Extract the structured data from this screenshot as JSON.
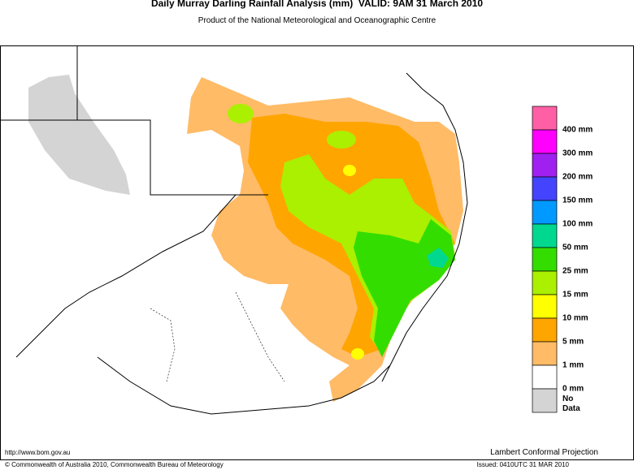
{
  "header": {
    "title": "Daily Murray Darling Rainfall Analysis (mm)  VALID: 9AM 31 March 2010",
    "subtitle": "Product of the National Meteorological and Oceanographic Centre"
  },
  "legend": {
    "colors": [
      "#ff5fa5",
      "#ff00ff",
      "#a020f0",
      "#4444ff",
      "#0099ff",
      "#00d890",
      "#33dd00",
      "#aaf000",
      "#ffff00",
      "#ffa500",
      "#ffbb66",
      "#ffffff",
      "#d4d4d4"
    ],
    "labels": [
      "400 mm",
      "300 mm",
      "200 mm",
      "150 mm",
      "100 mm",
      "50 mm",
      "25 mm",
      "15 mm",
      "10 mm",
      "5 mm",
      "1 mm",
      "0 mm",
      "No Data"
    ]
  },
  "footer": {
    "url": "http://www.bom.gov.au",
    "copyright": "© Commonwealth of Australia 2010, Commonwealth Bureau of Meteorology",
    "projection": "Lambert Conformal Projection",
    "issued": "Issued: 0410UTC 31 MAR 2010"
  }
}
